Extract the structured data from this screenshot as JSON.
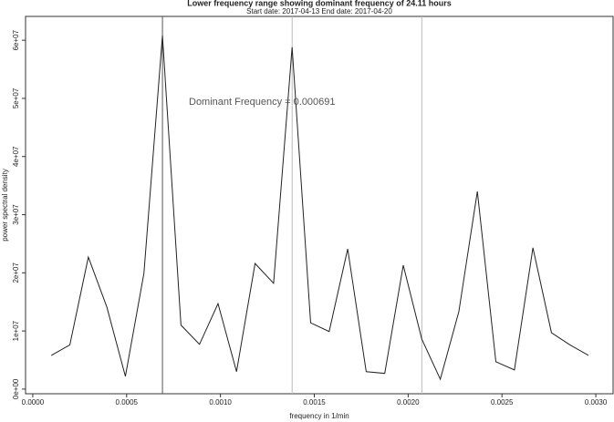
{
  "chart_data": {
    "type": "line",
    "title": "Lower frequency range showing dominant frequency of  24.11 hours",
    "subtitle": "Start date:  2017-04-13  End date:  2017-04-20",
    "x_label": "frequency in 1/min",
    "y_label": "power spectral density",
    "annotation": "Dominant Frequency =  0.000691",
    "x": [
      9.87e-05,
      0.0001974,
      0.0002961,
      0.0003948,
      0.0004935,
      0.0005922,
      0.0006909,
      0.0007896,
      0.0008883,
      0.000987,
      0.0010857,
      0.0011844,
      0.0012831,
      0.0013818,
      0.0014805,
      0.0015792,
      0.0016779,
      0.0017766,
      0.0018753,
      0.001974,
      0.0020727,
      0.0021714,
      0.0022701,
      0.0023688,
      0.0024675,
      0.0025662,
      0.0026649,
      0.0027636,
      0.0028623,
      0.002961
    ],
    "series": [
      {
        "color": "#222222",
        "values": [
          5800000,
          7600000,
          22700000,
          14100000,
          2200000,
          19900000,
          60800000,
          11000000,
          7700000,
          14700000,
          3000000,
          21600000,
          18200000,
          58800000,
          11400000,
          9900000,
          24100000,
          3000000,
          2700000,
          21300000,
          8600000,
          1700000,
          13300000,
          34000000,
          4700000,
          3300000,
          24300000,
          9700000,
          7600000,
          5800000
        ]
      }
    ],
    "vlines": [
      {
        "value": 0.000691,
        "color": "#555555"
      },
      {
        "value": 0.001382,
        "color": "#bbbbbb"
      },
      {
        "value": 0.002073,
        "color": "#bbbbbb"
      }
    ],
    "xlim": [
      -3.85e-05,
      0.003092
    ],
    "ylim": [
      -800000,
      64100000
    ],
    "xticks": [
      {
        "value": 0,
        "label": "0.0000"
      },
      {
        "value": 0.0005,
        "label": "0.0005"
      },
      {
        "value": 0.001,
        "label": "0.0010"
      },
      {
        "value": 0.0015,
        "label": "0.0015"
      },
      {
        "value": 0.002,
        "label": "0.0020"
      },
      {
        "value": 0.0025,
        "label": "0.0025"
      },
      {
        "value": 0.003,
        "label": "0.0030"
      }
    ],
    "yticks": [
      {
        "value": 0,
        "label": "0e+00"
      },
      {
        "value": 10000000,
        "label": "1e+07"
      },
      {
        "value": 20000000,
        "label": "2e+07"
      },
      {
        "value": 30000000,
        "label": "3e+07"
      },
      {
        "value": 40000000,
        "label": "4e+07"
      },
      {
        "value": 50000000,
        "label": "5e+07"
      },
      {
        "value": 60000000,
        "label": "6e+07"
      }
    ]
  }
}
